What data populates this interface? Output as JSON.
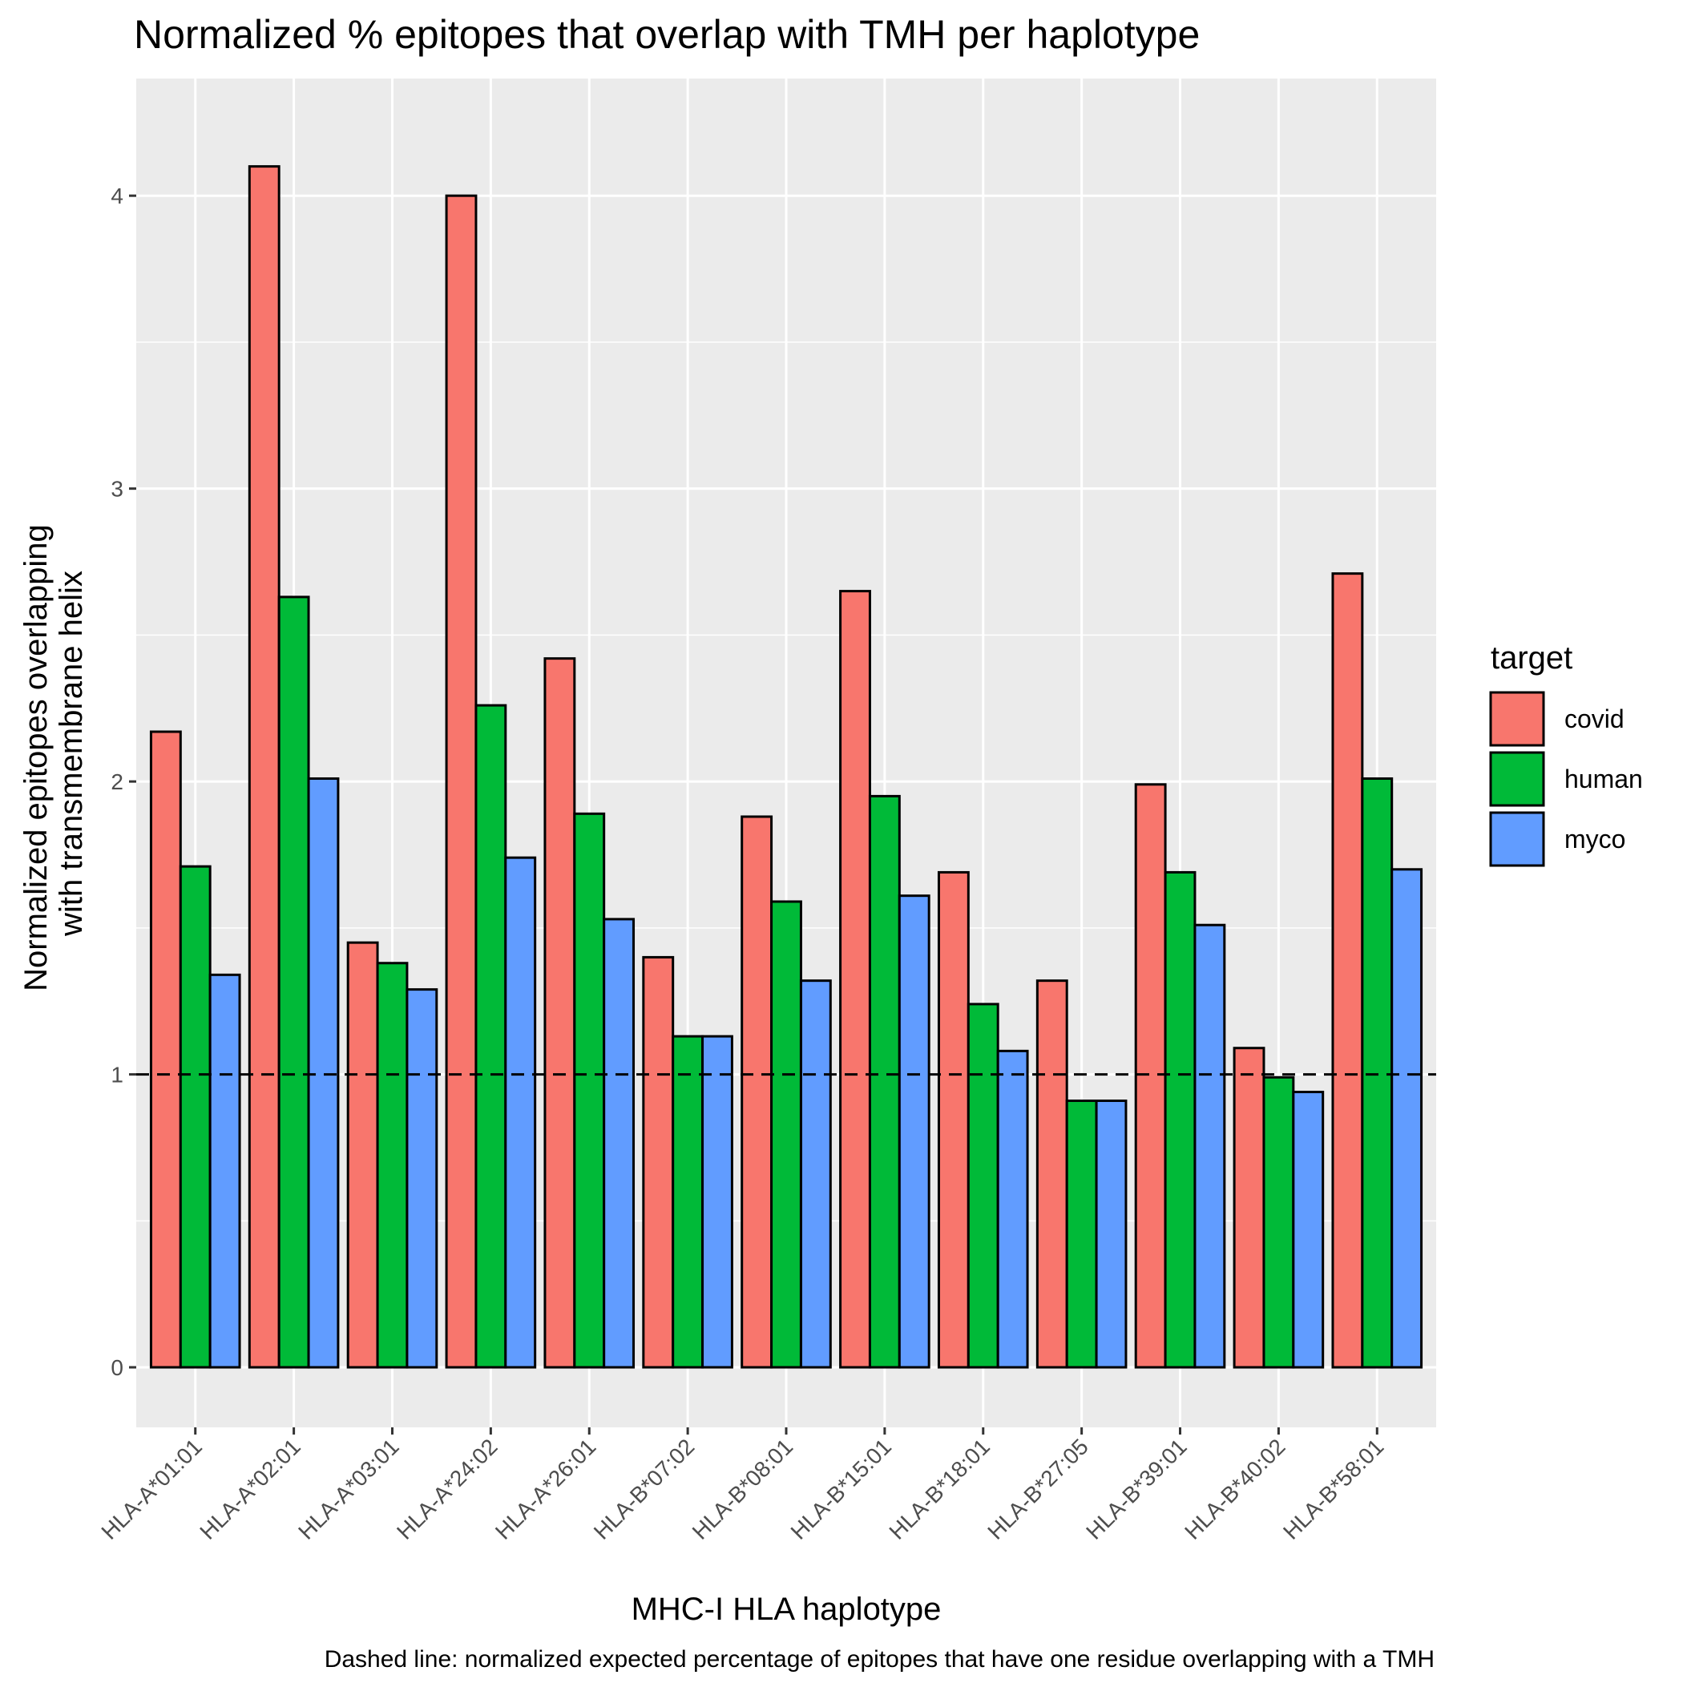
{
  "chart_data": {
    "type": "bar",
    "title": "Normalized % epitopes that overlap with TMH per haplotype",
    "xlabel": "MHC-I HLA haplotype",
    "ylabel_lines": [
      "Normalized epitopes overlapping",
      "with transmembrane helix"
    ],
    "caption": "Dashed line: normalized expected percentage of epitopes that have one residue overlapping with a TMH",
    "categories": [
      "HLA-A*01:01",
      "HLA-A*02:01",
      "HLA-A*03:01",
      "HLA-A*24:02",
      "HLA-A*26:01",
      "HLA-B*07:02",
      "HLA-B*08:01",
      "HLA-B*15:01",
      "HLA-B*18:01",
      "HLA-B*27:05",
      "HLA-B*39:01",
      "HLA-B*40:02",
      "HLA-B*58:01"
    ],
    "series": [
      {
        "name": "covid",
        "color": "#F8766D",
        "values": [
          2.17,
          4.1,
          1.45,
          4.0,
          2.42,
          1.4,
          1.88,
          2.65,
          1.69,
          1.32,
          1.99,
          1.09,
          2.71
        ]
      },
      {
        "name": "human",
        "color": "#00BA38",
        "values": [
          1.71,
          2.63,
          1.38,
          2.26,
          1.89,
          1.13,
          1.59,
          1.95,
          1.24,
          0.91,
          1.69,
          0.99,
          2.01
        ]
      },
      {
        "name": "myco",
        "color": "#619CFF",
        "values": [
          1.34,
          2.01,
          1.29,
          1.74,
          1.53,
          1.13,
          1.32,
          1.61,
          1.08,
          0.91,
          1.51,
          0.94,
          1.7
        ]
      }
    ],
    "yticks": [
      0,
      1,
      2,
      3,
      4
    ],
    "ylim": [
      -0.205,
      4.4
    ],
    "reference_line": {
      "y": 1,
      "style": "dashed"
    },
    "legend": {
      "title": "target",
      "position": "right"
    },
    "grid": true,
    "panel_background": "#EBEBEB"
  }
}
